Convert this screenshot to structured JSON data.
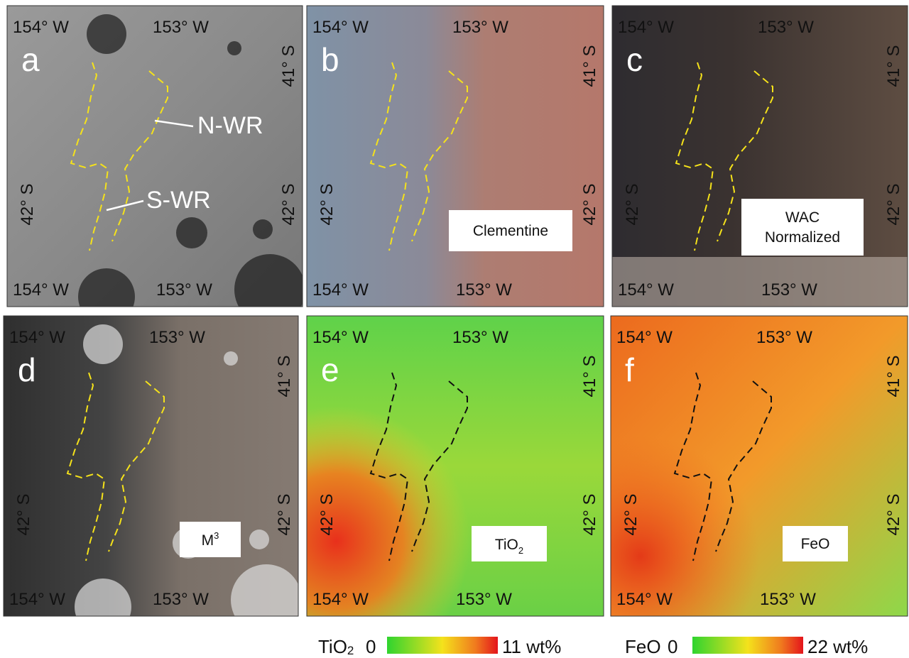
{
  "panels": [
    {
      "letter": "a",
      "lon_top": [
        "154° W",
        "153° W"
      ],
      "lon_bottom": [
        "154° W",
        "153° W"
      ],
      "lat_right": [
        "41° S",
        "42° S"
      ],
      "lat_left": "42° S",
      "annotations": [
        "N-WR",
        "S-WR"
      ]
    },
    {
      "letter": "b",
      "lon_top": [
        "154° W",
        "153° W"
      ],
      "lon_bottom": [
        "154° W",
        "153° W"
      ],
      "lat_right": [
        "41° S",
        "42° S"
      ],
      "lat_left": "42° S",
      "inset": {
        "lines": [
          "Clementine"
        ]
      }
    },
    {
      "letter": "c",
      "lon_top": [
        "154° W",
        "153° W"
      ],
      "lon_bottom": [
        "154° W",
        "153° W"
      ],
      "lat_right": [
        "41° S",
        "42° S"
      ],
      "lat_left": "42° S",
      "inset": {
        "lines": [
          "WAC",
          "Normalized"
        ]
      }
    },
    {
      "letter": "d",
      "lon_top": [
        "154° W",
        "153° W"
      ],
      "lon_bottom": [
        "154° W",
        "153° W"
      ],
      "lat_right": [
        "41° S",
        "42° S"
      ],
      "lat_left": "42° S",
      "inset": {
        "base": "M",
        "sup": "3"
      }
    },
    {
      "letter": "e",
      "lon_top": [
        "154° W",
        "153° W"
      ],
      "lon_bottom": [
        "154° W",
        "153° W"
      ],
      "lat_right": [
        "41° S",
        "42° S"
      ],
      "lat_left": "42° S",
      "inset": {
        "base": "TiO",
        "sub": "2"
      }
    },
    {
      "letter": "f",
      "lon_top": [
        "154° W",
        "153° W"
      ],
      "lon_bottom": [
        "154° W",
        "153° W"
      ],
      "lat_right": [
        "41° S",
        "42° S"
      ],
      "lat_left": "42° S",
      "inset": {
        "lines": [
          "FeO"
        ]
      }
    }
  ],
  "colorbars": [
    {
      "base": "TiO",
      "sub": "2",
      "min_label": "0",
      "max_label": "11 wt%"
    },
    {
      "base": "FeO",
      "min_label": "0",
      "max_label": "22 wt%"
    }
  ]
}
